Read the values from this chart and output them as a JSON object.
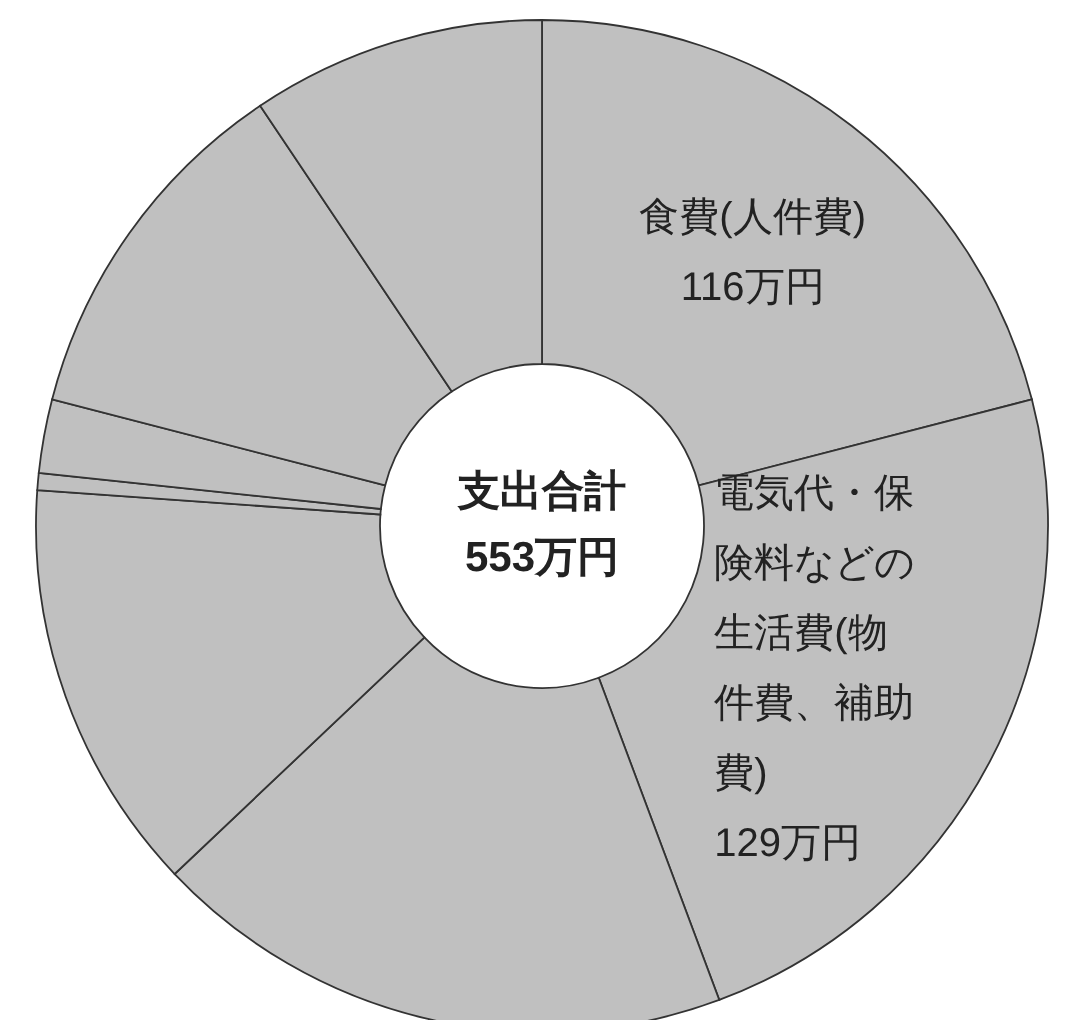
{
  "chart_data": {
    "type": "donut",
    "categories": [
      "食費(人件費)",
      "電気代・保険料などの生活費(物件費、補助費)",
      null,
      null,
      null,
      null,
      null,
      null
    ],
    "values": [
      116,
      129,
      103,
      73,
      3,
      13,
      64,
      52
    ],
    "value_labels": [
      "116万円",
      "129万円",
      null,
      null,
      null,
      null,
      null,
      null
    ],
    "colors": [
      "#c0c0c0",
      "#c0c0c0",
      "#c0c0c0",
      "#c0c0c0",
      "#c0c0c0",
      "#c0c0c0",
      "#c0c0c0",
      "#c0c0c0"
    ],
    "annotations": [
      "支出合計",
      "553万円"
    ]
  }
}
